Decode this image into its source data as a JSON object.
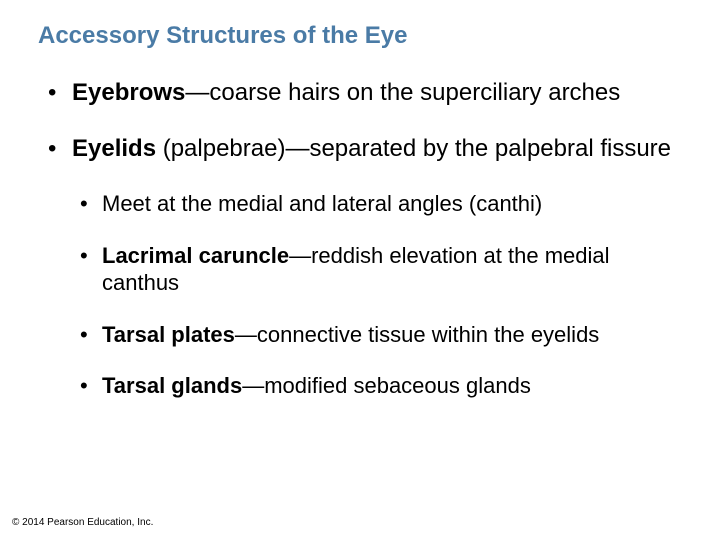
{
  "title": {
    "text": "Accessory Structures of the Eye",
    "color": "#4a7ba6",
    "fontsize": 24
  },
  "text_color": "#000000",
  "l1_fontsize": 24,
  "l2_fontsize": 22,
  "copyright": {
    "text": "© 2014 Pearson Education, Inc.",
    "fontsize": 10,
    "color": "#000000"
  },
  "bullets": [
    {
      "level": 1,
      "runs": [
        {
          "text": "Eyebrows",
          "bold": true
        },
        {
          "text": "—coarse hairs on the superciliary arches",
          "bold": false
        }
      ]
    },
    {
      "level": 1,
      "runs": [
        {
          "text": "Eyelids",
          "bold": true
        },
        {
          "text": " (palpebrae)—separated by the palpebral fissure",
          "bold": false
        }
      ]
    },
    {
      "level": 2,
      "runs": [
        {
          "text": "Meet at the medial and lateral angles (canthi)",
          "bold": false
        }
      ]
    },
    {
      "level": 2,
      "runs": [
        {
          "text": "Lacrimal caruncle",
          "bold": true
        },
        {
          "text": "—reddish elevation at the medial canthus",
          "bold": false
        }
      ]
    },
    {
      "level": 2,
      "runs": [
        {
          "text": "Tarsal plates",
          "bold": true
        },
        {
          "text": "—connective tissue within the eyelids",
          "bold": false
        }
      ]
    },
    {
      "level": 2,
      "runs": [
        {
          "text": "Tarsal glands",
          "bold": true
        },
        {
          "text": "—modified sebaceous glands",
          "bold": false
        }
      ]
    }
  ]
}
